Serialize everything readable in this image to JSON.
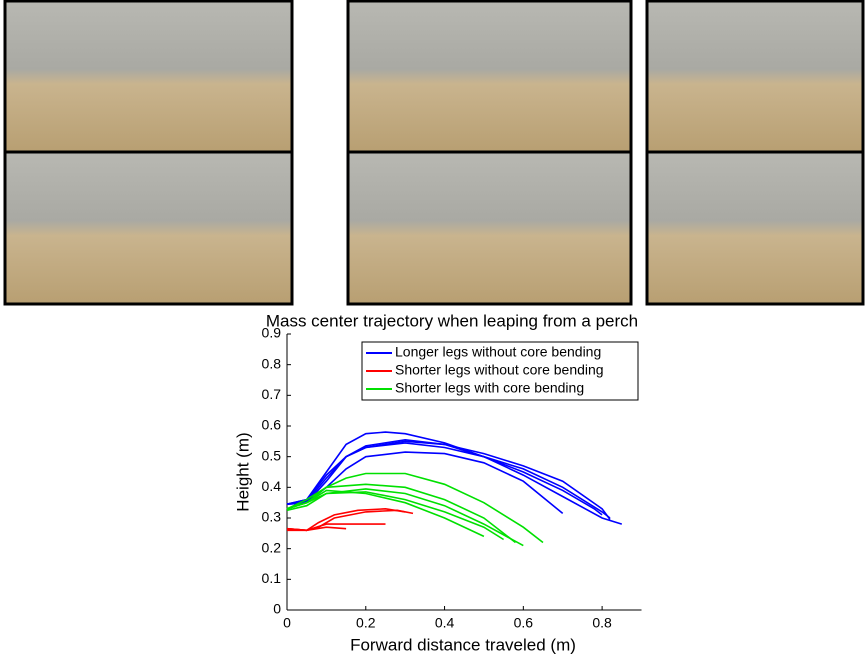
{
  "chart_data": {
    "type": "line",
    "title": "Mass center trajectory when leaping from a perch",
    "x_label": "Forward distance traveled (m)",
    "y_label": "Height (m)",
    "xlim": [
      0,
      0.9
    ],
    "xticks": [
      0,
      0.2,
      0.4,
      0.6,
      0.8
    ],
    "ylim": [
      0,
      0.9
    ],
    "yticks": [
      0,
      0.1,
      0.2,
      0.3,
      0.4,
      0.5,
      0.6,
      0.7,
      0.8,
      0.9
    ],
    "legend": "top-left",
    "series": [
      {
        "name": "Longer legs without core bending",
        "color": "#0000ff",
        "trials": [
          {
            "x": [
              0,
              0.05,
              0.1,
              0.15,
              0.2,
              0.25,
              0.3,
              0.4,
              0.5,
              0.6,
              0.7,
              0.8,
              0.85
            ],
            "y": [
              0.345,
              0.36,
              0.45,
              0.54,
              0.575,
              0.58,
              0.575,
              0.545,
              0.5,
              0.44,
              0.37,
              0.3,
              0.28
            ]
          },
          {
            "x": [
              0,
              0.05,
              0.1,
              0.15,
              0.2,
              0.3,
              0.4,
              0.5,
              0.6,
              0.7,
              0.8,
              0.82
            ],
            "y": [
              0.345,
              0.35,
              0.42,
              0.5,
              0.53,
              0.55,
              0.54,
              0.51,
              0.47,
              0.42,
              0.33,
              0.295
            ]
          },
          {
            "x": [
              0,
              0.05,
              0.1,
              0.15,
              0.2,
              0.3,
              0.4,
              0.5,
              0.6,
              0.7,
              0.8,
              0.82
            ],
            "y": [
              0.345,
              0.36,
              0.44,
              0.5,
              0.53,
              0.545,
              0.53,
              0.5,
              0.46,
              0.4,
              0.32,
              0.3
            ]
          },
          {
            "x": [
              0,
              0.05,
              0.1,
              0.15,
              0.2,
              0.3,
              0.4,
              0.5,
              0.6,
              0.7
            ],
            "y": [
              0.345,
              0.35,
              0.4,
              0.46,
              0.5,
              0.515,
              0.51,
              0.48,
              0.42,
              0.315
            ]
          },
          {
            "x": [
              0,
              0.05,
              0.1,
              0.15,
              0.2,
              0.3,
              0.4,
              0.5,
              0.6,
              0.7,
              0.78,
              0.8
            ],
            "y": [
              0.345,
              0.355,
              0.43,
              0.5,
              0.535,
              0.555,
              0.54,
              0.5,
              0.45,
              0.39,
              0.33,
              0.31
            ]
          }
        ]
      },
      {
        "name": "Shorter legs without core bending",
        "color": "#ff0000",
        "trials": [
          {
            "x": [
              0,
              0.05,
              0.08,
              0.12,
              0.18,
              0.25,
              0.3
            ],
            "y": [
              0.26,
              0.26,
              0.285,
              0.31,
              0.325,
              0.33,
              0.32
            ]
          },
          {
            "x": [
              0,
              0.05,
              0.08,
              0.12,
              0.2,
              0.28,
              0.32
            ],
            "y": [
              0.265,
              0.26,
              0.27,
              0.3,
              0.32,
              0.325,
              0.315
            ]
          },
          {
            "x": [
              0,
              0.05,
              0.1,
              0.15,
              0.2,
              0.25
            ],
            "y": [
              0.265,
              0.26,
              0.28,
              0.28,
              0.28,
              0.28
            ]
          },
          {
            "x": [
              0,
              0.05,
              0.1,
              0.15
            ],
            "y": [
              0.265,
              0.26,
              0.27,
              0.265
            ]
          }
        ]
      },
      {
        "name": "Shorter legs with core bending",
        "color": "#00e000",
        "trials": [
          {
            "x": [
              0,
              0.05,
              0.1,
              0.15,
              0.2,
              0.3,
              0.4,
              0.5,
              0.6,
              0.65
            ],
            "y": [
              0.33,
              0.35,
              0.4,
              0.43,
              0.445,
              0.445,
              0.41,
              0.35,
              0.27,
              0.22
            ]
          },
          {
            "x": [
              0,
              0.05,
              0.1,
              0.2,
              0.3,
              0.4,
              0.5,
              0.58
            ],
            "y": [
              0.33,
              0.36,
              0.4,
              0.41,
              0.4,
              0.36,
              0.3,
              0.22
            ]
          },
          {
            "x": [
              0,
              0.05,
              0.1,
              0.2,
              0.3,
              0.4,
              0.5,
              0.6
            ],
            "y": [
              0.33,
              0.35,
              0.38,
              0.395,
              0.38,
              0.34,
              0.28,
              0.21
            ]
          },
          {
            "x": [
              0,
              0.05,
              0.1,
              0.2,
              0.3,
              0.4,
              0.5,
              0.55
            ],
            "y": [
              0.325,
              0.34,
              0.38,
              0.385,
              0.36,
              0.32,
              0.27,
              0.23
            ]
          },
          {
            "x": [
              0,
              0.05,
              0.1,
              0.2,
              0.3,
              0.4,
              0.5
            ],
            "y": [
              0.33,
              0.35,
              0.39,
              0.38,
              0.35,
              0.3,
              0.24
            ]
          }
        ]
      }
    ]
  }
}
